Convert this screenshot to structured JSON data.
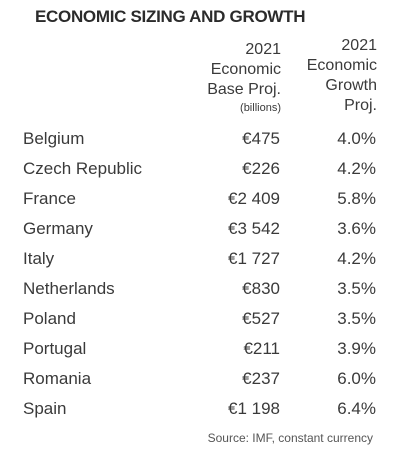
{
  "title": "ECONOMIC SIZING AND GROWTH",
  "headers": {
    "base": [
      "2021",
      "Economic",
      "Base Proj."
    ],
    "base_unit": "(billions)",
    "growth": [
      "2021",
      "Economic",
      "Growth",
      "Proj."
    ]
  },
  "rows": [
    {
      "country": "Belgium",
      "base": "€475",
      "growth": "4.0%"
    },
    {
      "country": "Czech Republic",
      "base": "€226",
      "growth": "4.2%"
    },
    {
      "country": "France",
      "base": "€2 409",
      "growth": "5.8%"
    },
    {
      "country": "Germany",
      "base": "€3 542",
      "growth": "3.6%"
    },
    {
      "country": "Italy",
      "base": "€1 727",
      "growth": "4.2%"
    },
    {
      "country": "Netherlands",
      "base": "€830",
      "growth": "3.5%"
    },
    {
      "country": "Poland",
      "base": "€527",
      "growth": "3.5%"
    },
    {
      "country": "Portugal",
      "base": "€211",
      "growth": "3.9%"
    },
    {
      "country": "Romania",
      "base": "€237",
      "growth": "6.0%"
    },
    {
      "country": "Spain",
      "base": "€1 198",
      "growth": "6.4%"
    }
  ],
  "source": "Source: IMF, constant currency"
}
